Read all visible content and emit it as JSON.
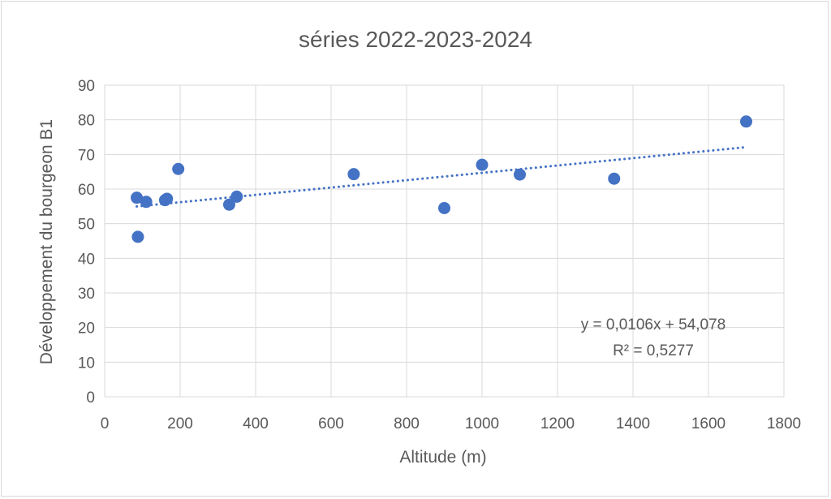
{
  "chart_data": {
    "type": "scatter",
    "title": "séries 2022-2023-2024",
    "xlabel": "Altitude (m)",
    "ylabel": "Développement du bourgeon B1",
    "xlim": [
      0,
      1800
    ],
    "ylim": [
      0,
      90
    ],
    "x_ticks": [
      0,
      200,
      400,
      600,
      800,
      1000,
      1200,
      1400,
      1600,
      1800
    ],
    "y_ticks": [
      0,
      10,
      20,
      30,
      40,
      50,
      60,
      70,
      80,
      90
    ],
    "grid": true,
    "legend": "none",
    "series": [
      {
        "color": "#4472c4",
        "points": [
          {
            "x": 85,
            "y": 57.5
          },
          {
            "x": 88,
            "y": 46.2
          },
          {
            "x": 110,
            "y": 56.3
          },
          {
            "x": 160,
            "y": 56.8
          },
          {
            "x": 165,
            "y": 57.2
          },
          {
            "x": 195,
            "y": 65.8
          },
          {
            "x": 330,
            "y": 55.5
          },
          {
            "x": 350,
            "y": 57.8
          },
          {
            "x": 660,
            "y": 64.3
          },
          {
            "x": 900,
            "y": 54.5
          },
          {
            "x": 1000,
            "y": 67.0
          },
          {
            "x": 1100,
            "y": 64.2
          },
          {
            "x": 1350,
            "y": 63.0
          },
          {
            "x": 1700,
            "y": 79.5
          }
        ]
      }
    ],
    "trendline": {
      "type": "linear",
      "slope": 0.0106,
      "intercept": 54.078,
      "x_range": [
        85,
        1700
      ],
      "style": "dotted",
      "color": "#4472c4",
      "equation_label": "y = 0,0106x + 54,078",
      "r2_label": "R² = 0,5277"
    }
  }
}
